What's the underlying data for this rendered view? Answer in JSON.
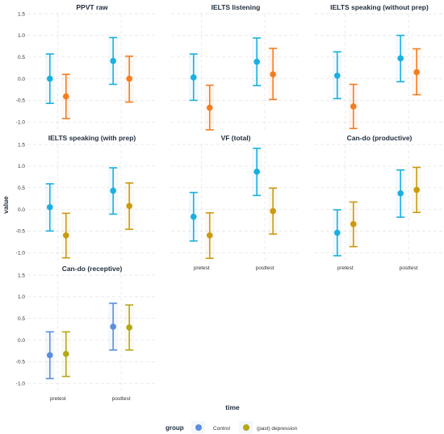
{
  "chart_data": [
    {
      "type": "scatter",
      "title": "PPVT raw",
      "categories": [
        "pretest",
        "posttest"
      ],
      "ylim": [
        -1.2,
        1.5
      ],
      "yticks": [
        "-1.0",
        "-0.5",
        "0.0",
        "0.5",
        "1.0",
        "1.5"
      ],
      "show_x_labels": false,
      "show_y_labels": true,
      "series": [
        {
          "name": "Control",
          "color": "#1ab0e0",
          "mean": [
            0.0,
            0.41
          ],
          "lower": [
            -0.57,
            -0.13
          ],
          "upper": [
            0.57,
            0.95
          ]
        },
        {
          "name": "(past) depression",
          "color": "#f47d20",
          "mean": [
            -0.41,
            0.0
          ],
          "lower": [
            -0.92,
            -0.54
          ],
          "upper": [
            0.1,
            0.52
          ]
        }
      ]
    },
    {
      "type": "scatter",
      "title": "IELTS listening",
      "categories": [
        "pretest",
        "posttest"
      ],
      "ylim": [
        -1.2,
        1.5
      ],
      "yticks": [
        "-1.0",
        "-0.5",
        "0.0",
        "0.5",
        "1.0",
        "1.5"
      ],
      "show_x_labels": false,
      "show_y_labels": false,
      "series": [
        {
          "name": "Control",
          "color": "#1ab0e0",
          "mean": [
            0.03,
            0.39
          ],
          "lower": [
            -0.5,
            -0.16
          ],
          "upper": [
            0.57,
            0.94
          ]
        },
        {
          "name": "(past) depression",
          "color": "#f47d20",
          "mean": [
            -0.67,
            0.1
          ],
          "lower": [
            -1.18,
            -0.48
          ],
          "upper": [
            -0.15,
            0.7
          ]
        }
      ]
    },
    {
      "type": "scatter",
      "title": "IELTS speaking (without prep)",
      "categories": [
        "pretest",
        "posttest"
      ],
      "ylim": [
        -1.2,
        1.5
      ],
      "yticks": [
        "-1.0",
        "-0.5",
        "0.0",
        "0.5",
        "1.0",
        "1.5"
      ],
      "show_x_labels": false,
      "show_y_labels": false,
      "series": [
        {
          "name": "Control",
          "color": "#1ab0e0",
          "mean": [
            0.07,
            0.47
          ],
          "lower": [
            -0.46,
            -0.07
          ],
          "upper": [
            0.62,
            1.0
          ]
        },
        {
          "name": "(past) depression",
          "color": "#f47d20",
          "mean": [
            -0.64,
            0.15
          ],
          "lower": [
            -1.15,
            -0.37
          ],
          "upper": [
            -0.13,
            0.69
          ]
        }
      ]
    },
    {
      "type": "scatter",
      "title": "IELTS speaking (with prep)",
      "categories": [
        "pretest",
        "posttest"
      ],
      "ylim": [
        -1.2,
        1.5
      ],
      "yticks": [
        "-1.0",
        "-0.5",
        "0.0",
        "0.5",
        "1.0",
        "1.5"
      ],
      "show_x_labels": false,
      "show_y_labels": true,
      "series": [
        {
          "name": "Control",
          "color": "#1ab0e0",
          "mean": [
            0.05,
            0.43
          ],
          "lower": [
            -0.5,
            -0.11
          ],
          "upper": [
            0.59,
            0.96
          ]
        },
        {
          "name": "(past) depression",
          "color": "#cc9a10",
          "mean": [
            -0.6,
            0.08
          ],
          "lower": [
            -1.12,
            -0.46
          ],
          "upper": [
            -0.09,
            0.61
          ]
        }
      ]
    },
    {
      "type": "scatter",
      "title": "VF (total)",
      "categories": [
        "pretest",
        "posttest"
      ],
      "ylim": [
        -1.2,
        1.5
      ],
      "yticks": [
        "-1.0",
        "-0.5",
        "0.0",
        "0.5",
        "1.0",
        "1.5"
      ],
      "show_x_labels": true,
      "show_y_labels": false,
      "series": [
        {
          "name": "Control",
          "color": "#1ab0e0",
          "mean": [
            -0.17,
            0.87
          ],
          "lower": [
            -0.73,
            0.32
          ],
          "upper": [
            0.39,
            1.41
          ]
        },
        {
          "name": "(past) depression",
          "color": "#cc9a10",
          "mean": [
            -0.6,
            -0.04
          ],
          "lower": [
            -1.13,
            -0.57
          ],
          "upper": [
            -0.08,
            0.49
          ]
        }
      ]
    },
    {
      "type": "scatter",
      "title": "Can-do (productive)",
      "categories": [
        "pretest",
        "posttest"
      ],
      "ylim": [
        -1.2,
        1.5
      ],
      "yticks": [
        "-1.0",
        "-0.5",
        "0.0",
        "0.5",
        "1.0",
        "1.5"
      ],
      "show_x_labels": true,
      "show_y_labels": false,
      "series": [
        {
          "name": "Control",
          "color": "#1ab0e0",
          "mean": [
            -0.54,
            0.37
          ],
          "lower": [
            -1.07,
            -0.18
          ],
          "upper": [
            -0.01,
            0.91
          ]
        },
        {
          "name": "(past) depression",
          "color": "#cc9a10",
          "mean": [
            -0.34,
            0.45
          ],
          "lower": [
            -0.86,
            -0.07
          ],
          "upper": [
            0.17,
            0.97
          ]
        }
      ]
    },
    {
      "type": "scatter",
      "title": "Can-do (receptive)",
      "categories": [
        "pretest",
        "posttest"
      ],
      "ylim": [
        -1.2,
        1.5
      ],
      "yticks": [
        "-1.0",
        "-0.5",
        "0.0",
        "0.5",
        "1.0",
        "1.5"
      ],
      "show_x_labels": true,
      "show_y_labels": true,
      "series": [
        {
          "name": "Control",
          "color": "#5b8fdc",
          "mean": [
            -0.35,
            0.31
          ],
          "lower": [
            -0.89,
            -0.23
          ],
          "upper": [
            0.19,
            0.85
          ]
        },
        {
          "name": "(past) depression",
          "color": "#b5a818",
          "mean": [
            -0.32,
            0.29
          ],
          "lower": [
            -0.84,
            -0.23
          ],
          "upper": [
            0.19,
            0.81
          ]
        }
      ]
    }
  ],
  "axes": {
    "xlabel": "time",
    "ylabel": "value"
  },
  "legend": {
    "title": "group",
    "position": "bottom",
    "items": [
      {
        "label": "Control",
        "color": "#5b8fdc"
      },
      {
        "label": "(past) depression",
        "color": "#b5a818"
      }
    ]
  }
}
